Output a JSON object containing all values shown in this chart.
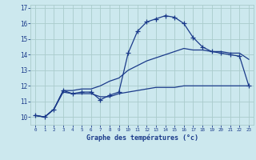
{
  "xlabel": "Graphe des températures (°c)",
  "bg_color": "#cce8ee",
  "grid_color": "#aacccc",
  "line_color": "#1a3a8a",
  "xlim": [
    -0.5,
    23.5
  ],
  "ylim": [
    9.5,
    17.2
  ],
  "yticks": [
    10,
    11,
    12,
    13,
    14,
    15,
    16,
    17
  ],
  "xticks": [
    0,
    1,
    2,
    3,
    4,
    5,
    6,
    7,
    8,
    9,
    10,
    11,
    12,
    13,
    14,
    15,
    16,
    17,
    18,
    19,
    20,
    21,
    22,
    23
  ],
  "hours": [
    0,
    1,
    2,
    3,
    4,
    5,
    6,
    7,
    8,
    9,
    10,
    11,
    12,
    13,
    14,
    15,
    16,
    17,
    18,
    19,
    20,
    21,
    22,
    23
  ],
  "temp_actual": [
    10.1,
    10.0,
    10.5,
    11.7,
    11.5,
    11.6,
    11.6,
    11.1,
    11.4,
    11.6,
    14.1,
    15.5,
    16.1,
    16.3,
    16.5,
    16.4,
    16.0,
    15.1,
    14.5,
    14.2,
    14.1,
    14.0,
    13.9,
    12.0
  ],
  "temp_min": [
    10.1,
    10.0,
    10.5,
    11.6,
    11.5,
    11.5,
    11.5,
    11.3,
    11.3,
    11.5,
    11.6,
    11.7,
    11.8,
    11.9,
    11.9,
    11.9,
    12.0,
    12.0,
    12.0,
    12.0,
    12.0,
    12.0,
    12.0,
    12.0
  ],
  "temp_max": [
    10.1,
    10.0,
    10.5,
    11.7,
    11.7,
    11.8,
    11.8,
    12.0,
    12.3,
    12.5,
    13.0,
    13.3,
    13.6,
    13.8,
    14.0,
    14.2,
    14.4,
    14.3,
    14.3,
    14.2,
    14.2,
    14.1,
    14.1,
    13.7
  ]
}
